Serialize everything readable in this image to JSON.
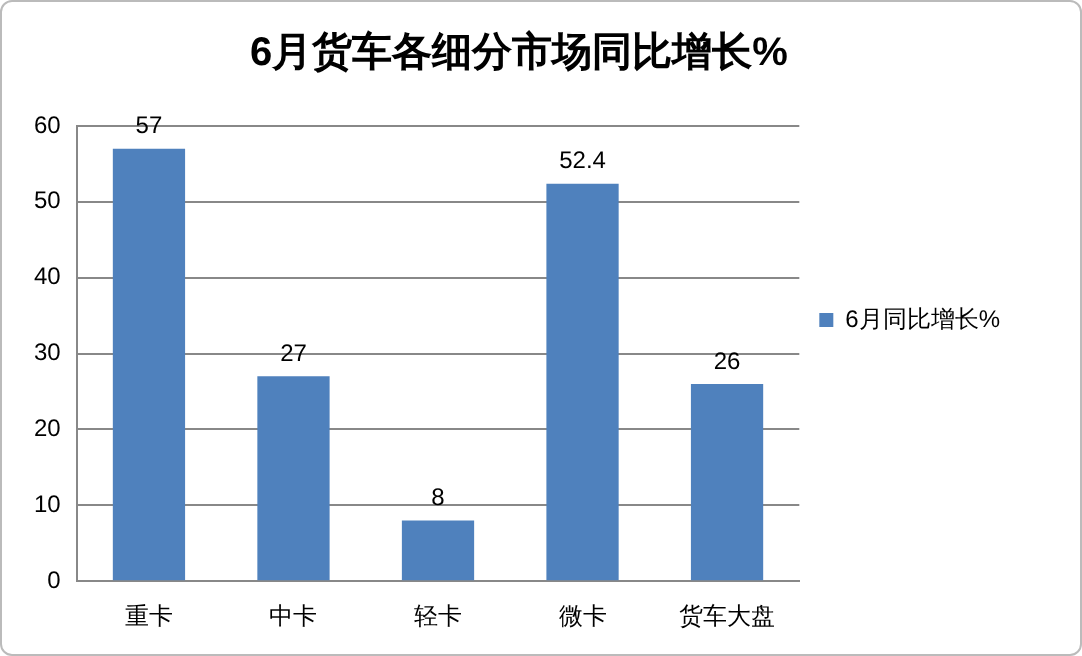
{
  "chart_data": {
    "type": "bar",
    "title": "6月货车各细分市场同比增长%",
    "categories": [
      "重卡",
      "中卡",
      "轻卡",
      "微卡",
      "货车大盘"
    ],
    "series": [
      {
        "name": "6月同比增长%",
        "color": "#4f81bd",
        "values": [
          57,
          27,
          8,
          52.4,
          26
        ]
      }
    ],
    "ylim": [
      0,
      60
    ],
    "yticks": [
      0,
      10,
      20,
      30,
      40,
      50,
      60
    ],
    "grid": "y",
    "legend": "right",
    "data_labels": true
  }
}
